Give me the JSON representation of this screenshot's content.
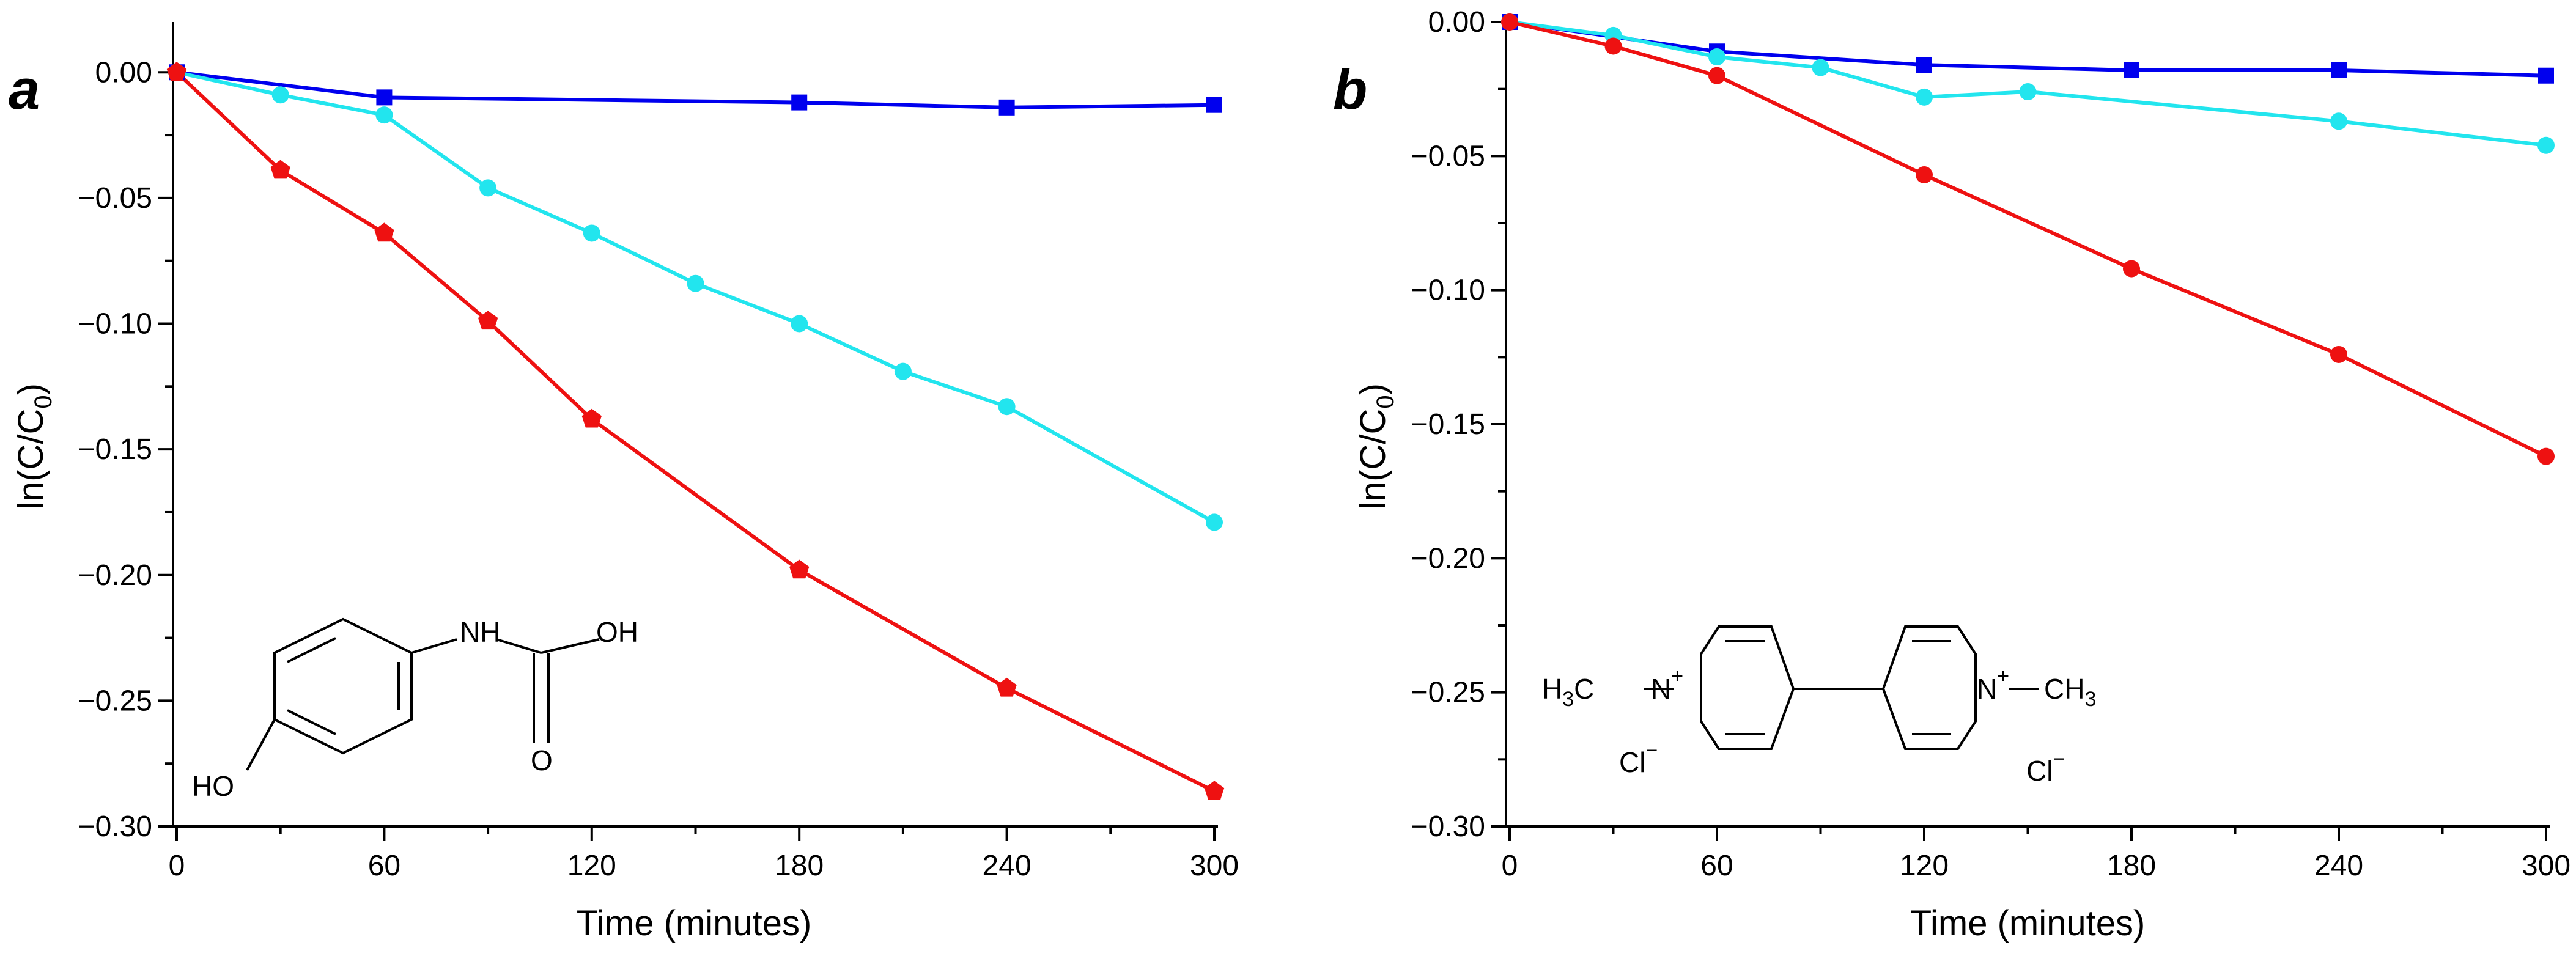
{
  "chart_data": [
    {
      "type": "line",
      "panel_label": "a",
      "xlabel": "Time (minutes)",
      "ylabel": "ln(C/C0)",
      "ylabel_main": "ln(C/C",
      "ylabel_sub": "0",
      "ylabel_close": ")",
      "xlim": [
        0,
        300
      ],
      "ylim": [
        -0.3,
        0.02
      ],
      "xticks": [
        0,
        60,
        120,
        180,
        240,
        300
      ],
      "xtick_labels": [
        "0",
        "60",
        "120",
        "180",
        "240",
        "300"
      ],
      "yticks": [
        0.0,
        -0.05,
        -0.1,
        -0.15,
        -0.2,
        -0.25,
        -0.3
      ],
      "ytick_labels": [
        "0.00",
        "−0.05",
        "−0.10",
        "−0.15",
        "−0.20",
        "−0.25",
        "−0.30"
      ],
      "series": [
        {
          "name": "blue",
          "color": "#0000ee",
          "marker": "square",
          "x": [
            0,
            60,
            180,
            240,
            300
          ],
          "y": [
            0.0,
            -0.01,
            -0.012,
            -0.014,
            -0.013
          ]
        },
        {
          "name": "cyan",
          "color": "#22e5ee",
          "marker": "circle",
          "x": [
            0,
            30,
            60,
            90,
            120,
            150,
            180,
            210,
            240,
            300
          ],
          "y": [
            0.0,
            -0.009,
            -0.017,
            -0.046,
            -0.064,
            -0.084,
            -0.1,
            -0.119,
            -0.133,
            -0.179
          ]
        },
        {
          "name": "red",
          "color": "#ee1111",
          "marker": "pentagon",
          "x": [
            0,
            30,
            60,
            90,
            120,
            180,
            240,
            300
          ],
          "y": [
            0.0,
            -0.039,
            -0.064,
            -0.099,
            -0.138,
            -0.198,
            -0.245,
            -0.286
          ]
        }
      ],
      "inset_labels": {
        "nh": "NH",
        "oh": "OH",
        "o": "O",
        "ho": "HO"
      }
    },
    {
      "type": "line",
      "panel_label": "b",
      "xlabel": "Time (minutes)",
      "ylabel": "ln(C/C0)",
      "ylabel_main": "ln(C/C",
      "ylabel_sub": "0",
      "ylabel_close": ")",
      "xlim": [
        0,
        300
      ],
      "ylim": [
        -0.3,
        0.0
      ],
      "xticks": [
        0,
        60,
        120,
        180,
        240,
        300
      ],
      "xtick_labels": [
        "0",
        "60",
        "120",
        "180",
        "240",
        "300"
      ],
      "yticks": [
        0.0,
        -0.05,
        -0.1,
        -0.15,
        -0.2,
        -0.25,
        -0.3
      ],
      "ytick_labels": [
        "0.00",
        "−0.05",
        "−0.10",
        "−0.15",
        "−0.20",
        "−0.25",
        "−0.30"
      ],
      "series": [
        {
          "name": "blue",
          "color": "#0000ee",
          "marker": "square",
          "x": [
            0,
            60,
            120,
            180,
            240,
            300
          ],
          "y": [
            0.0,
            -0.011,
            -0.016,
            -0.018,
            -0.018,
            -0.02
          ]
        },
        {
          "name": "cyan",
          "color": "#22e5ee",
          "marker": "circle",
          "x": [
            0,
            30,
            60,
            90,
            120,
            150,
            240,
            300
          ],
          "y": [
            0.0,
            -0.005,
            -0.013,
            -0.017,
            -0.028,
            -0.026,
            -0.037,
            -0.046
          ]
        },
        {
          "name": "red",
          "color": "#ee1111",
          "marker": "circle",
          "x": [
            0,
            30,
            60,
            120,
            180,
            240,
            300
          ],
          "y": [
            0.0,
            -0.009,
            -0.02,
            -0.057,
            -0.092,
            -0.124,
            -0.162
          ]
        }
      ],
      "inset_labels": {
        "h3c": "H3C",
        "n_left": "N+",
        "n_right": "N+",
        "ch3": "CH3",
        "cl_left": "Cl−",
        "cl_right": "Cl−"
      }
    }
  ]
}
